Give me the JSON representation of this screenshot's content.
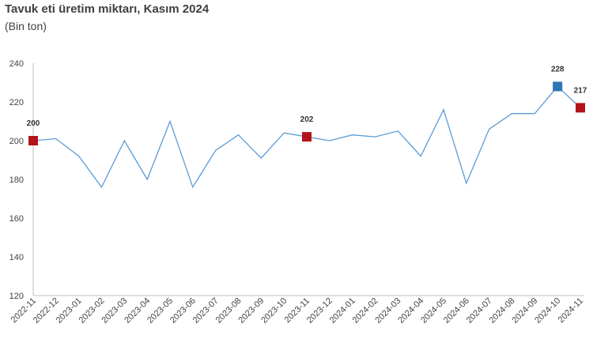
{
  "chart_data": {
    "type": "line",
    "title": "Tavuk eti üretim miktarı, Kasım 2024",
    "subtitle": "(Bin ton)",
    "categories": [
      "2022-11",
      "2022-12",
      "2023-01",
      "2023-02",
      "2023-03",
      "2023-04",
      "2023-05",
      "2023-06",
      "2023-07",
      "2023-08",
      "2023-09",
      "2023-10",
      "2023-11",
      "2023-12",
      "2024-01",
      "2024-02",
      "2024-03",
      "2024-04",
      "2024-05",
      "2024-06",
      "2024-07",
      "2024-08",
      "2024-09",
      "2024-10",
      "2024-11"
    ],
    "series": [
      {
        "values": [
          200,
          201,
          192,
          176,
          200,
          180,
          210,
          176,
          195,
          203,
          191,
          204,
          202,
          200,
          203,
          202,
          205,
          192,
          216,
          178,
          206,
          214,
          214,
          228,
          217
        ]
      }
    ],
    "highlights": [
      {
        "index": 0,
        "label": "200",
        "color": "#b3141a"
      },
      {
        "index": 12,
        "label": "202",
        "color": "#b3141a"
      },
      {
        "index": 23,
        "label": "228",
        "color": "#2e75b6"
      },
      {
        "index": 24,
        "label": "217",
        "color": "#b3141a"
      }
    ],
    "yticks": [
      120,
      140,
      160,
      180,
      200,
      220,
      240
    ],
    "ylim": [
      120,
      240
    ],
    "grid": false,
    "line_color": "#5b9bd5"
  }
}
